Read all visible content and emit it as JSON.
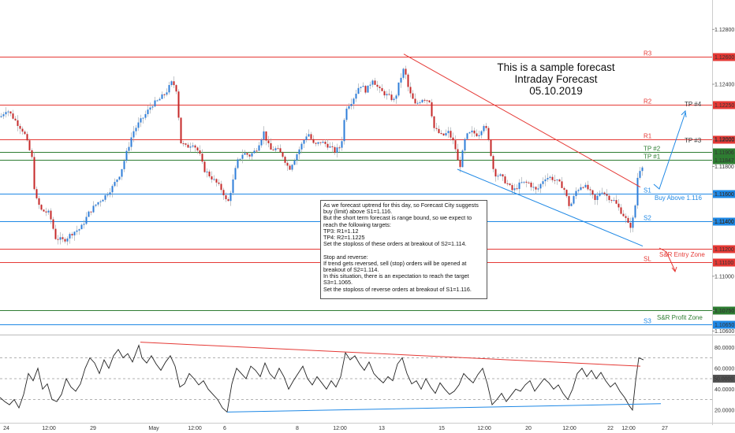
{
  "title_block": {
    "line1": "This is a sample forecast",
    "line2": "Intraday Forecast",
    "line3": "05.10.2019"
  },
  "note": {
    "lines": [
      "As we forecast uptrend for this day, so Forecast City suggests buy (limit) above S1=1.116.",
      "But the short term forecast is range bound, so we expect to reach the following targets:",
      "TP3: R1=1.12",
      "TP4: R2=1.1225",
      "Set the stoploss of these orders at breakout of S2=1.114.",
      "",
      "Stop and reverse:",
      "If trend gets reversed, sell (stop) orders will be opened at breakout of S2=1.114.",
      "In this situation, there is an expectation to reach the target S3=1.1065.",
      "Set the stoploss of reverse orders at breakout of S1=1.116."
    ]
  },
  "chart_data": [
    {
      "type": "candlestick",
      "price_axis": {
        "ticks": [
          "1.12800",
          "1.12400",
          "1.12000",
          "1.11800",
          "1.11600",
          "1.11400",
          "1.11000",
          "1.10750",
          "1.10600"
        ],
        "range": [
          1.1058,
          1.1298
        ]
      },
      "time_axis": {
        "labels": [
          "24",
          "12:00",
          "29",
          "May",
          "12:00",
          "6",
          "8",
          "12:00",
          "13",
          "15",
          "12:00",
          "20",
          "12:00",
          "22",
          "12:00",
          "27"
        ]
      },
      "levels": [
        {
          "name": "R3",
          "price": 1.126,
          "label": "1.12600",
          "color": "#e53935"
        },
        {
          "name": "R2",
          "price": 1.1225,
          "label": "1.12250",
          "color": "#e53935"
        },
        {
          "name": "R1",
          "price": 1.12,
          "label": "1.12000",
          "color": "#e53935"
        },
        {
          "name": "TP #2",
          "price": 1.11906,
          "label": "1.11906",
          "color": "#2e7d32"
        },
        {
          "name": "TP #1",
          "price": 1.11847,
          "label": "1.11847",
          "color": "#2e7d32"
        },
        {
          "name": "S1",
          "price": 1.116,
          "label": "1.11600",
          "color": "#1e88e5"
        },
        {
          "name": "S2",
          "price": 1.114,
          "label": "1.11400",
          "color": "#1e88e5"
        },
        {
          "name": "",
          "price": 1.112,
          "label": "1.11200",
          "color": "#e53935"
        },
        {
          "name": "SL",
          "price": 1.111,
          "label": "1.11100",
          "color": "#e53935"
        },
        {
          "name": "",
          "price": 1.1075,
          "label": "1.10750",
          "color": "#2e7d32"
        },
        {
          "name": "S3",
          "price": 1.1065,
          "label": "1.10650",
          "color": "#1e88e5"
        }
      ],
      "annotations": [
        "TP #4",
        "TP #3",
        "Buy Above 1.116",
        "S&R Entry Zone",
        "S&R Profit Zone"
      ],
      "close_path": [
        [
          0,
          1.1216
        ],
        [
          8,
          1.1222
        ],
        [
          30,
          1.1205
        ],
        [
          40,
          1.1186
        ],
        [
          44,
          1.1158
        ],
        [
          52,
          1.1148
        ],
        [
          62,
          1.1146
        ],
        [
          70,
          1.1128
        ],
        [
          80,
          1.1126
        ],
        [
          92,
          1.1132
        ],
        [
          102,
          1.1135
        ],
        [
          112,
          1.1146
        ],
        [
          122,
          1.1153
        ],
        [
          132,
          1.1158
        ],
        [
          142,
          1.1165
        ],
        [
          152,
          1.1175
        ],
        [
          160,
          1.119
        ],
        [
          168,
          1.1205
        ],
        [
          176,
          1.1212
        ],
        [
          184,
          1.1218
        ],
        [
          192,
          1.1225
        ],
        [
          200,
          1.1228
        ],
        [
          210,
          1.1234
        ],
        [
          218,
          1.1242
        ],
        [
          224,
          1.1235
        ],
        [
          228,
          1.1198
        ],
        [
          236,
          1.1194
        ],
        [
          244,
          1.1197
        ],
        [
          252,
          1.119
        ],
        [
          258,
          1.1178
        ],
        [
          266,
          1.1173
        ],
        [
          274,
          1.1168
        ],
        [
          282,
          1.1162
        ],
        [
          288,
          1.1152
        ],
        [
          294,
          1.1167
        ],
        [
          300,
          1.1183
        ],
        [
          308,
          1.119
        ],
        [
          316,
          1.1188
        ],
        [
          324,
          1.1192
        ],
        [
          334,
          1.1205
        ],
        [
          342,
          1.1192
        ],
        [
          350,
          1.1193
        ],
        [
          358,
          1.1188
        ],
        [
          366,
          1.1178
        ],
        [
          374,
          1.1187
        ],
        [
          382,
          1.1196
        ],
        [
          390,
          1.1205
        ],
        [
          398,
          1.1195
        ],
        [
          406,
          1.1198
        ],
        [
          414,
          1.1196
        ],
        [
          424,
          1.1191
        ],
        [
          432,
          1.1195
        ],
        [
          438,
          1.1223
        ],
        [
          446,
          1.1228
        ],
        [
          456,
          1.124
        ],
        [
          464,
          1.1235
        ],
        [
          472,
          1.1244
        ],
        [
          480,
          1.1236
        ],
        [
          490,
          1.1232
        ],
        [
          500,
          1.1228
        ],
        [
          506,
          1.1242
        ],
        [
          512,
          1.1252
        ],
        [
          518,
          1.1235
        ],
        [
          526,
          1.1225
        ],
        [
          536,
          1.123
        ],
        [
          544,
          1.1228
        ],
        [
          550,
          1.1208
        ],
        [
          560,
          1.1202
        ],
        [
          568,
          1.1205
        ],
        [
          576,
          1.1196
        ],
        [
          582,
          1.1178
        ],
        [
          590,
          1.1202
        ],
        [
          598,
          1.1205
        ],
        [
          606,
          1.1203
        ],
        [
          614,
          1.1212
        ],
        [
          620,
          1.1196
        ],
        [
          626,
          1.1175
        ],
        [
          634,
          1.1173
        ],
        [
          642,
          1.1168
        ],
        [
          650,
          1.1162
        ],
        [
          660,
          1.1168
        ],
        [
          670,
          1.1168
        ],
        [
          680,
          1.1162
        ],
        [
          690,
          1.1172
        ],
        [
          698,
          1.1172
        ],
        [
          706,
          1.1169
        ],
        [
          714,
          1.1165
        ],
        [
          722,
          1.115
        ],
        [
          730,
          1.1162
        ],
        [
          738,
          1.1167
        ],
        [
          746,
          1.1163
        ],
        [
          754,
          1.1155
        ],
        [
          762,
          1.1163
        ],
        [
          770,
          1.1158
        ],
        [
          778,
          1.1155
        ],
        [
          786,
          1.1148
        ],
        [
          792,
          1.1143
        ],
        [
          798,
          1.1135
        ],
        [
          804,
          1.1145
        ],
        [
          808,
          1.1172
        ],
        [
          812,
          1.118
        ],
        [
          816,
          1.1182
        ]
      ],
      "trendlines": [
        {
          "color": "#e53935",
          "from": [
            512,
            1.1262
          ],
          "to": [
            812,
            1.1165
          ]
        },
        {
          "color": "#1e88e5",
          "from": [
            580,
            1.1178
          ],
          "to": [
            815,
            1.1122
          ]
        }
      ]
    },
    {
      "type": "line",
      "name": "oscillator",
      "ylim": [
        10,
        90
      ],
      "ticks": [
        "80.0000",
        "60.0000",
        "50.0000",
        "40.0000",
        "20.0000"
      ],
      "reference_lines": [
        70,
        50,
        30
      ],
      "values": [
        [
          0,
          32
        ],
        [
          6,
          28
        ],
        [
          12,
          25
        ],
        [
          18,
          30
        ],
        [
          24,
          22
        ],
        [
          30,
          35
        ],
        [
          36,
          55
        ],
        [
          42,
          48
        ],
        [
          48,
          60
        ],
        [
          54,
          40
        ],
        [
          60,
          45
        ],
        [
          66,
          30
        ],
        [
          72,
          28
        ],
        [
          78,
          35
        ],
        [
          84,
          50
        ],
        [
          90,
          42
        ],
        [
          96,
          38
        ],
        [
          102,
          45
        ],
        [
          108,
          60
        ],
        [
          114,
          70
        ],
        [
          120,
          65
        ],
        [
          126,
          55
        ],
        [
          132,
          68
        ],
        [
          138,
          60
        ],
        [
          144,
          72
        ],
        [
          150,
          78
        ],
        [
          156,
          70
        ],
        [
          162,
          74
        ],
        [
          168,
          66
        ],
        [
          176,
          82
        ],
        [
          180,
          70
        ],
        [
          186,
          65
        ],
        [
          192,
          72
        ],
        [
          198,
          64
        ],
        [
          204,
          58
        ],
        [
          210,
          66
        ],
        [
          216,
          72
        ],
        [
          222,
          62
        ],
        [
          228,
          42
        ],
        [
          234,
          45
        ],
        [
          240,
          55
        ],
        [
          246,
          50
        ],
        [
          252,
          44
        ],
        [
          258,
          48
        ],
        [
          264,
          40
        ],
        [
          270,
          35
        ],
        [
          276,
          30
        ],
        [
          282,
          22
        ],
        [
          288,
          18
        ],
        [
          294,
          45
        ],
        [
          300,
          60
        ],
        [
          306,
          55
        ],
        [
          312,
          50
        ],
        [
          318,
          62
        ],
        [
          324,
          58
        ],
        [
          330,
          52
        ],
        [
          336,
          65
        ],
        [
          342,
          55
        ],
        [
          348,
          50
        ],
        [
          354,
          60
        ],
        [
          360,
          52
        ],
        [
          366,
          40
        ],
        [
          372,
          48
        ],
        [
          378,
          55
        ],
        [
          384,
          62
        ],
        [
          390,
          50
        ],
        [
          396,
          44
        ],
        [
          402,
          52
        ],
        [
          408,
          46
        ],
        [
          414,
          40
        ],
        [
          420,
          48
        ],
        [
          426,
          42
        ],
        [
          432,
          52
        ],
        [
          438,
          75
        ],
        [
          444,
          68
        ],
        [
          450,
          72
        ],
        [
          456,
          64
        ],
        [
          462,
          58
        ],
        [
          468,
          66
        ],
        [
          474,
          55
        ],
        [
          480,
          50
        ],
        [
          486,
          46
        ],
        [
          492,
          52
        ],
        [
          498,
          48
        ],
        [
          504,
          64
        ],
        [
          510,
          70
        ],
        [
          516,
          55
        ],
        [
          522,
          45
        ],
        [
          528,
          48
        ],
        [
          534,
          40
        ],
        [
          540,
          50
        ],
        [
          546,
          42
        ],
        [
          552,
          36
        ],
        [
          558,
          46
        ],
        [
          564,
          40
        ],
        [
          570,
          35
        ],
        [
          576,
          38
        ],
        [
          582,
          44
        ],
        [
          588,
          55
        ],
        [
          594,
          50
        ],
        [
          600,
          46
        ],
        [
          606,
          54
        ],
        [
          612,
          60
        ],
        [
          618,
          45
        ],
        [
          624,
          25
        ],
        [
          630,
          30
        ],
        [
          636,
          36
        ],
        [
          642,
          28
        ],
        [
          648,
          34
        ],
        [
          654,
          40
        ],
        [
          660,
          38
        ],
        [
          666,
          44
        ],
        [
          672,
          48
        ],
        [
          678,
          38
        ],
        [
          684,
          44
        ],
        [
          690,
          50
        ],
        [
          696,
          46
        ],
        [
          702,
          40
        ],
        [
          708,
          44
        ],
        [
          714,
          36
        ],
        [
          720,
          30
        ],
        [
          726,
          40
        ],
        [
          732,
          55
        ],
        [
          738,
          60
        ],
        [
          744,
          52
        ],
        [
          750,
          58
        ],
        [
          756,
          50
        ],
        [
          762,
          56
        ],
        [
          768,
          48
        ],
        [
          774,
          42
        ],
        [
          780,
          46
        ],
        [
          786,
          38
        ],
        [
          792,
          32
        ],
        [
          798,
          24
        ],
        [
          802,
          20
        ],
        [
          806,
          48
        ],
        [
          810,
          70
        ],
        [
          816,
          68
        ]
      ],
      "trendlines": [
        {
          "color": "#e53935",
          "from": [
            178,
            85
          ],
          "to": [
            812,
            62
          ]
        },
        {
          "color": "#1e88e5",
          "from": [
            288,
            18
          ],
          "to": [
            838,
            26
          ]
        }
      ]
    }
  ]
}
